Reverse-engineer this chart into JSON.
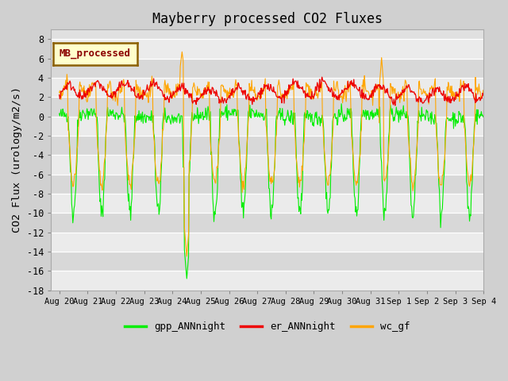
{
  "title": "Mayberry processed CO2 Fluxes",
  "ylabel": "CO2 Flux (urology/m2/s)",
  "ylim": [
    -18,
    9
  ],
  "yticks": [
    -18,
    -16,
    -14,
    -12,
    -10,
    -8,
    -6,
    -4,
    -2,
    0,
    2,
    4,
    6,
    8
  ],
  "fig_bg": "#d0d0d0",
  "plot_bg": "#e0e0e0",
  "band_light": "#ebebeb",
  "band_dark": "#d8d8d8",
  "legend_text": "MB_processed",
  "legend_text_color": "#8b0000",
  "legend_box_facecolor": "#ffffcc",
  "legend_box_edgecolor": "#8b6000",
  "line_colors": {
    "gpp": "#00ee00",
    "er": "#ee0000",
    "wc": "#ffa500"
  },
  "line_labels": {
    "gpp": "gpp_ANNnight",
    "er": "er_ANNnight",
    "wc": "wc_gf"
  },
  "day_labels": [
    "Aug 20",
    "Aug 21",
    "Aug 22",
    "Aug 23",
    "Aug 24",
    "Aug 25",
    "Aug 26",
    "Aug 27",
    "Aug 28",
    "Aug 29",
    "Aug 30",
    "Aug 31",
    "Sep 1",
    "Sep 2",
    "Sep 3",
    "Sep 4"
  ],
  "n_days": 15,
  "points_per_day": 48
}
